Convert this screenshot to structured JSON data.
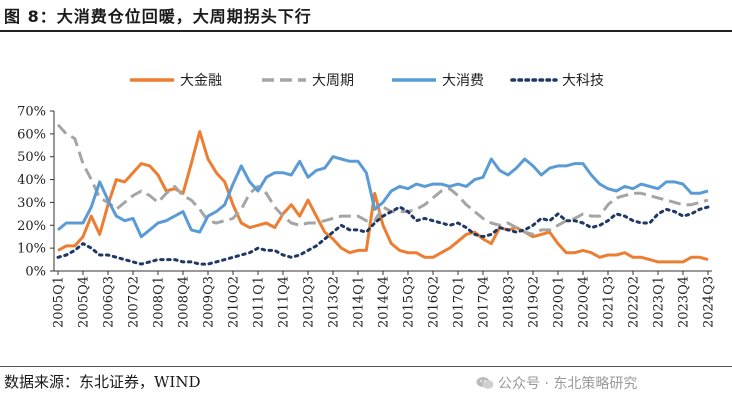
{
  "title": "图 8：大消费仓位回暖，大周期拐头下行",
  "source": "数据来源：东北证券，WIND",
  "watermark": "公众号 · 东北策略研究",
  "chart_data": {
    "type": "line",
    "title": "大消费仓位回暖，大周期拐头下行",
    "xlabel": "",
    "ylabel": "",
    "ylim": [
      0,
      0.7
    ],
    "yticks": [
      0,
      0.1,
      0.2,
      0.3,
      0.4,
      0.5,
      0.6,
      0.7
    ],
    "ytick_labels": [
      "0%",
      "10%",
      "20%",
      "30%",
      "40%",
      "50%",
      "60%",
      "70%"
    ],
    "xtick_labels": [
      "2005Q1",
      "2005Q4",
      "2006Q3",
      "2007Q2",
      "2008Q1",
      "2008Q4",
      "2009Q3",
      "2010Q2",
      "2011Q1",
      "2011Q4",
      "2012Q3",
      "2013Q2",
      "2014Q1",
      "2014Q4",
      "2015Q3",
      "2016Q2",
      "2017Q1",
      "2017Q4",
      "2018Q3",
      "2019Q2",
      "2020Q1",
      "2020Q4",
      "2021Q3",
      "2022Q2",
      "2023Q1",
      "2023Q4",
      "2024Q3"
    ],
    "xtick_start_index": 0,
    "xtick_step": 3,
    "n_points": 79,
    "legend_position": "top",
    "series": [
      {
        "name": "大金融",
        "color": "#ED7D31",
        "style": "solid",
        "values": [
          0.09,
          0.11,
          0.11,
          0.15,
          0.24,
          0.16,
          0.29,
          0.4,
          0.39,
          0.43,
          0.47,
          0.46,
          0.42,
          0.35,
          0.36,
          0.34,
          0.47,
          0.61,
          0.49,
          0.43,
          0.39,
          0.29,
          0.21,
          0.19,
          0.2,
          0.21,
          0.19,
          0.25,
          0.29,
          0.24,
          0.31,
          0.24,
          0.17,
          0.14,
          0.1,
          0.08,
          0.09,
          0.09,
          0.34,
          0.2,
          0.12,
          0.09,
          0.08,
          0.08,
          0.06,
          0.06,
          0.08,
          0.1,
          0.13,
          0.16,
          0.17,
          0.14,
          0.12,
          0.19,
          0.18,
          0.19,
          0.17,
          0.15,
          0.16,
          0.17,
          0.12,
          0.08,
          0.08,
          0.09,
          0.08,
          0.06,
          0.07,
          0.07,
          0.08,
          0.06,
          0.06,
          0.05,
          0.04,
          0.04,
          0.04,
          0.04,
          0.06,
          0.06,
          0.05
        ]
      },
      {
        "name": "大周期",
        "color": "#A5A5A5",
        "style": "dashed",
        "values": [
          0.64,
          0.6,
          0.58,
          0.47,
          0.4,
          0.32,
          0.3,
          0.27,
          0.3,
          0.33,
          0.35,
          0.33,
          0.3,
          0.34,
          0.37,
          0.33,
          0.31,
          0.27,
          0.22,
          0.21,
          0.22,
          0.23,
          0.27,
          0.34,
          0.37,
          0.34,
          0.28,
          0.24,
          0.21,
          0.2,
          0.21,
          0.21,
          0.22,
          0.23,
          0.24,
          0.24,
          0.24,
          0.22,
          0.22,
          0.28,
          0.26,
          0.26,
          0.26,
          0.27,
          0.29,
          0.32,
          0.35,
          0.36,
          0.33,
          0.29,
          0.26,
          0.23,
          0.21,
          0.2,
          0.21,
          0.19,
          0.17,
          0.16,
          0.18,
          0.18,
          0.2,
          0.22,
          0.23,
          0.25,
          0.24,
          0.24,
          0.29,
          0.32,
          0.33,
          0.34,
          0.34,
          0.33,
          0.32,
          0.31,
          0.3,
          0.29,
          0.29,
          0.3,
          0.31
        ]
      },
      {
        "name": "大消费",
        "color": "#5B9BD5",
        "style": "solid",
        "values": [
          0.18,
          0.21,
          0.21,
          0.21,
          0.28,
          0.39,
          0.31,
          0.24,
          0.22,
          0.23,
          0.15,
          0.18,
          0.21,
          0.22,
          0.24,
          0.26,
          0.18,
          0.17,
          0.24,
          0.26,
          0.29,
          0.38,
          0.46,
          0.39,
          0.35,
          0.41,
          0.43,
          0.43,
          0.42,
          0.48,
          0.41,
          0.44,
          0.45,
          0.5,
          0.49,
          0.48,
          0.48,
          0.43,
          0.27,
          0.3,
          0.35,
          0.37,
          0.36,
          0.38,
          0.37,
          0.38,
          0.38,
          0.37,
          0.38,
          0.37,
          0.4,
          0.41,
          0.49,
          0.44,
          0.42,
          0.45,
          0.49,
          0.46,
          0.42,
          0.45,
          0.46,
          0.46,
          0.47,
          0.47,
          0.42,
          0.38,
          0.36,
          0.35,
          0.37,
          0.36,
          0.38,
          0.37,
          0.36,
          0.39,
          0.39,
          0.38,
          0.34,
          0.34,
          0.35
        ]
      },
      {
        "name": "大科技",
        "color": "#1F3864",
        "style": "dotted",
        "values": [
          0.06,
          0.07,
          0.09,
          0.12,
          0.1,
          0.07,
          0.07,
          0.06,
          0.05,
          0.04,
          0.03,
          0.04,
          0.05,
          0.05,
          0.05,
          0.04,
          0.04,
          0.03,
          0.03,
          0.04,
          0.05,
          0.06,
          0.07,
          0.08,
          0.1,
          0.09,
          0.09,
          0.07,
          0.06,
          0.07,
          0.09,
          0.11,
          0.14,
          0.17,
          0.2,
          0.18,
          0.18,
          0.17,
          0.21,
          0.24,
          0.26,
          0.28,
          0.26,
          0.22,
          0.23,
          0.22,
          0.21,
          0.2,
          0.21,
          0.19,
          0.16,
          0.15,
          0.16,
          0.19,
          0.18,
          0.17,
          0.18,
          0.2,
          0.23,
          0.22,
          0.25,
          0.22,
          0.22,
          0.21,
          0.19,
          0.2,
          0.22,
          0.25,
          0.24,
          0.22,
          0.21,
          0.21,
          0.25,
          0.27,
          0.26,
          0.24,
          0.25,
          0.27,
          0.28
        ]
      }
    ]
  }
}
